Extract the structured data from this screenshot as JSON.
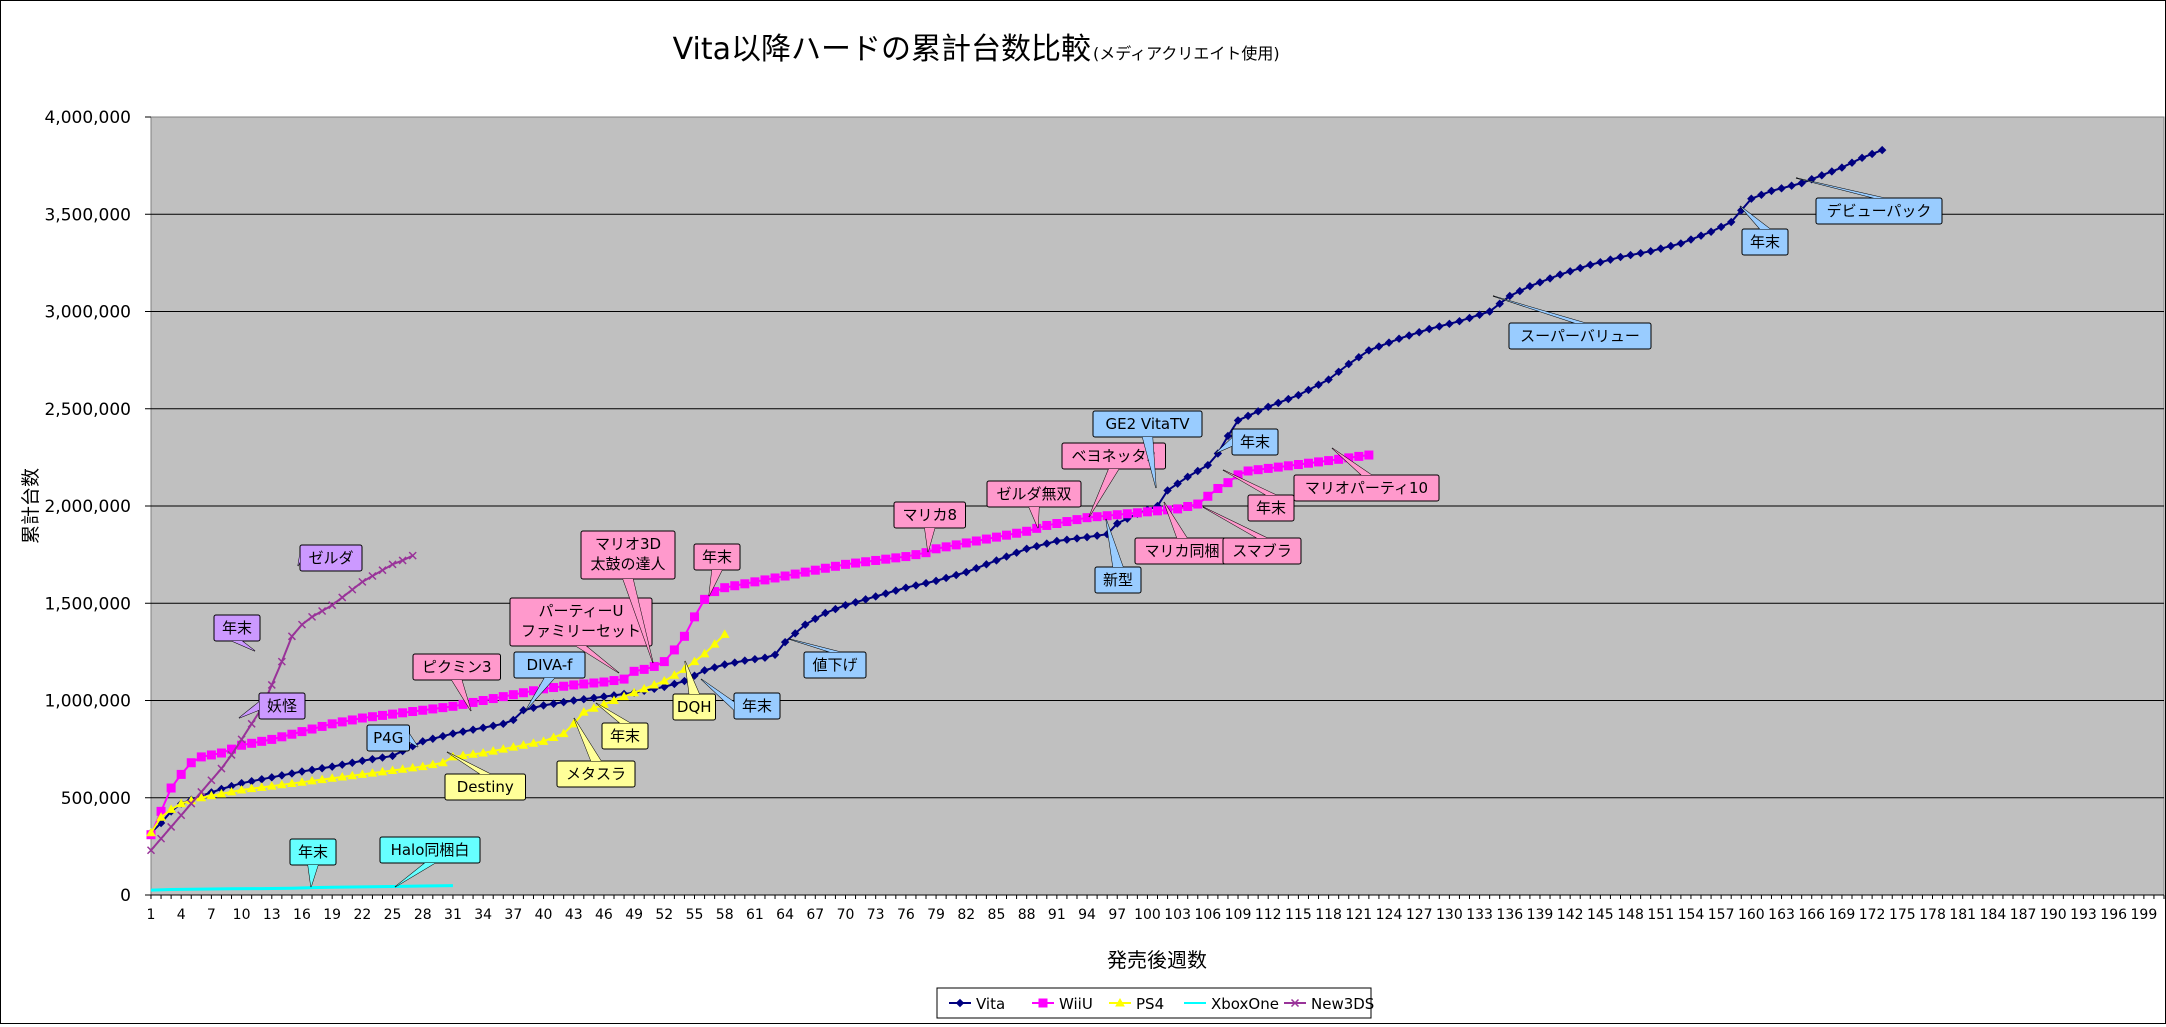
{
  "chart_data": {
    "type": "line",
    "title": "Vita以降ハードの累計台数比較",
    "subtitle": "(メディアクリエイト使用)",
    "xlabel": "発売後週数",
    "ylabel": "累計台数",
    "xlim": [
      1,
      201
    ],
    "ylim": [
      0,
      4000000
    ],
    "yticks": [
      0,
      500000,
      1000000,
      1500000,
      2000000,
      2500000,
      3000000,
      3500000,
      4000000
    ],
    "ytick_labels": [
      "0",
      "500,000",
      "1,000,000",
      "1,500,000",
      "2,000,000",
      "2,500,000",
      "3,000,000",
      "3,500,000",
      "4,000,000"
    ],
    "xtick_labels": [
      "1",
      "4",
      "7",
      "10",
      "13",
      "16",
      "19",
      "22",
      "25",
      "28",
      "31",
      "34",
      "37",
      "40",
      "43",
      "46",
      "49",
      "52",
      "55",
      "58",
      "61",
      "64",
      "67",
      "70",
      "73",
      "76",
      "79",
      "82",
      "85",
      "88",
      "91",
      "94",
      "97",
      "100",
      "103",
      "106",
      "109",
      "112",
      "115",
      "118",
      "121",
      "124",
      "127",
      "130",
      "133",
      "136",
      "139",
      "142",
      "145",
      "148",
      "151",
      "154",
      "157",
      "160",
      "163",
      "166",
      "169",
      "172",
      "175",
      "178",
      "181",
      "184",
      "187",
      "190",
      "193",
      "196",
      "199"
    ],
    "grid": true,
    "legend_position": "bottom",
    "series": [
      {
        "name": "Vita",
        "color": "#000080",
        "marker": "diamond",
        "points": [
          [
            1,
            320000
          ],
          [
            2,
            370000
          ],
          [
            3,
            430000
          ],
          [
            4,
            470000
          ],
          [
            6,
            510000
          ],
          [
            8,
            545000
          ],
          [
            10,
            575000
          ],
          [
            13,
            605000
          ],
          [
            16,
            635000
          ],
          [
            19,
            660000
          ],
          [
            22,
            690000
          ],
          [
            25,
            715000
          ],
          [
            26,
            740000
          ],
          [
            28,
            790000
          ],
          [
            31,
            830000
          ],
          [
            34,
            860000
          ],
          [
            36,
            880000
          ],
          [
            37,
            900000
          ],
          [
            38,
            950000
          ],
          [
            40,
            975000
          ],
          [
            43,
            1000000
          ],
          [
            46,
            1020000
          ],
          [
            49,
            1040000
          ],
          [
            52,
            1070000
          ],
          [
            54,
            1100000
          ],
          [
            56,
            1155000
          ],
          [
            58,
            1185000
          ],
          [
            60,
            1205000
          ],
          [
            62,
            1220000
          ],
          [
            63,
            1235000
          ],
          [
            64,
            1300000
          ],
          [
            66,
            1390000
          ],
          [
            68,
            1450000
          ],
          [
            70,
            1490000
          ],
          [
            73,
            1535000
          ],
          [
            76,
            1580000
          ],
          [
            79,
            1615000
          ],
          [
            82,
            1660000
          ],
          [
            85,
            1720000
          ],
          [
            88,
            1780000
          ],
          [
            91,
            1820000
          ],
          [
            94,
            1840000
          ],
          [
            96,
            1855000
          ],
          [
            97,
            1910000
          ],
          [
            99,
            1960000
          ],
          [
            101,
            2000000
          ],
          [
            102,
            2080000
          ],
          [
            104,
            2150000
          ],
          [
            106,
            2210000
          ],
          [
            107,
            2270000
          ],
          [
            108,
            2360000
          ],
          [
            109,
            2440000
          ],
          [
            112,
            2510000
          ],
          [
            115,
            2570000
          ],
          [
            118,
            2650000
          ],
          [
            120,
            2730000
          ],
          [
            122,
            2800000
          ],
          [
            125,
            2860000
          ],
          [
            128,
            2910000
          ],
          [
            131,
            2950000
          ],
          [
            134,
            3000000
          ],
          [
            135,
            3040000
          ],
          [
            136,
            3080000
          ],
          [
            138,
            3130000
          ],
          [
            141,
            3190000
          ],
          [
            144,
            3240000
          ],
          [
            147,
            3280000
          ],
          [
            150,
            3310000
          ],
          [
            153,
            3350000
          ],
          [
            156,
            3410000
          ],
          [
            158,
            3460000
          ],
          [
            159,
            3520000
          ],
          [
            160,
            3580000
          ],
          [
            162,
            3620000
          ],
          [
            165,
            3660000
          ],
          [
            167,
            3700000
          ],
          [
            169,
            3740000
          ],
          [
            171,
            3790000
          ],
          [
            173,
            3830000
          ]
        ]
      },
      {
        "name": "WiiU",
        "color": "#FF00FF",
        "marker": "square",
        "points": [
          [
            1,
            310000
          ],
          [
            2,
            430000
          ],
          [
            3,
            550000
          ],
          [
            4,
            620000
          ],
          [
            5,
            680000
          ],
          [
            6,
            710000
          ],
          [
            8,
            730000
          ],
          [
            9,
            750000
          ],
          [
            10,
            770000
          ],
          [
            13,
            800000
          ],
          [
            16,
            840000
          ],
          [
            19,
            880000
          ],
          [
            22,
            910000
          ],
          [
            25,
            930000
          ],
          [
            28,
            950000
          ],
          [
            31,
            970000
          ],
          [
            34,
            1000000
          ],
          [
            37,
            1030000
          ],
          [
            40,
            1060000
          ],
          [
            43,
            1080000
          ],
          [
            46,
            1095000
          ],
          [
            48,
            1110000
          ],
          [
            49,
            1150000
          ],
          [
            50,
            1160000
          ],
          [
            51,
            1175000
          ],
          [
            52,
            1200000
          ],
          [
            53,
            1260000
          ],
          [
            54,
            1330000
          ],
          [
            55,
            1430000
          ],
          [
            56,
            1520000
          ],
          [
            57,
            1560000
          ],
          [
            58,
            1580000
          ],
          [
            61,
            1610000
          ],
          [
            64,
            1640000
          ],
          [
            67,
            1670000
          ],
          [
            70,
            1700000
          ],
          [
            73,
            1720000
          ],
          [
            76,
            1740000
          ],
          [
            78,
            1760000
          ],
          [
            79,
            1780000
          ],
          [
            82,
            1810000
          ],
          [
            85,
            1840000
          ],
          [
            88,
            1870000
          ],
          [
            90,
            1900000
          ],
          [
            92,
            1920000
          ],
          [
            94,
            1940000
          ],
          [
            97,
            1955000
          ],
          [
            100,
            1970000
          ],
          [
            103,
            1985000
          ],
          [
            105,
            2010000
          ],
          [
            106,
            2050000
          ],
          [
            107,
            2090000
          ],
          [
            108,
            2120000
          ],
          [
            109,
            2160000
          ],
          [
            110,
            2180000
          ],
          [
            113,
            2200000
          ],
          [
            116,
            2220000
          ],
          [
            119,
            2240000
          ],
          [
            121,
            2255000
          ],
          [
            122,
            2262000
          ]
        ]
      },
      {
        "name": "PS4",
        "color": "#FFFF00",
        "marker": "triangle",
        "points": [
          [
            1,
            320000
          ],
          [
            2,
            400000
          ],
          [
            3,
            440000
          ],
          [
            4,
            470000
          ],
          [
            6,
            500000
          ],
          [
            8,
            520000
          ],
          [
            10,
            540000
          ],
          [
            13,
            560000
          ],
          [
            16,
            580000
          ],
          [
            19,
            600000
          ],
          [
            22,
            620000
          ],
          [
            25,
            640000
          ],
          [
            28,
            660000
          ],
          [
            30,
            680000
          ],
          [
            31,
            710000
          ],
          [
            34,
            730000
          ],
          [
            37,
            760000
          ],
          [
            40,
            790000
          ],
          [
            42,
            830000
          ],
          [
            43,
            880000
          ],
          [
            44,
            940000
          ],
          [
            46,
            980000
          ],
          [
            48,
            1020000
          ],
          [
            50,
            1060000
          ],
          [
            52,
            1100000
          ],
          [
            54,
            1160000
          ],
          [
            55,
            1200000
          ],
          [
            56,
            1240000
          ],
          [
            57,
            1290000
          ],
          [
            58,
            1340000
          ]
        ]
      },
      {
        "name": "XboxOne",
        "color": "#00FFFF",
        "marker": "none",
        "points": [
          [
            1,
            25000
          ],
          [
            3,
            28000
          ],
          [
            6,
            30000
          ],
          [
            9,
            32000
          ],
          [
            12,
            33000
          ],
          [
            15,
            35000
          ],
          [
            17,
            38000
          ],
          [
            19,
            40000
          ],
          [
            22,
            42000
          ],
          [
            25,
            44000
          ],
          [
            28,
            46000
          ],
          [
            31,
            48000
          ]
        ]
      },
      {
        "name": "New3DS",
        "color": "#993399",
        "marker": "x",
        "points": [
          [
            1,
            230000
          ],
          [
            2,
            290000
          ],
          [
            3,
            350000
          ],
          [
            4,
            410000
          ],
          [
            5,
            470000
          ],
          [
            6,
            530000
          ],
          [
            7,
            590000
          ],
          [
            8,
            650000
          ],
          [
            9,
            720000
          ],
          [
            10,
            800000
          ],
          [
            11,
            880000
          ],
          [
            12,
            960000
          ],
          [
            13,
            1080000
          ],
          [
            14,
            1200000
          ],
          [
            15,
            1330000
          ],
          [
            16,
            1390000
          ],
          [
            17,
            1430000
          ],
          [
            18,
            1460000
          ],
          [
            19,
            1490000
          ],
          [
            20,
            1530000
          ],
          [
            21,
            1570000
          ],
          [
            22,
            1610000
          ],
          [
            23,
            1640000
          ],
          [
            24,
            1670000
          ],
          [
            25,
            1700000
          ],
          [
            26,
            1720000
          ],
          [
            27,
            1745000
          ]
        ]
      }
    ],
    "annotations": [
      {
        "text": "ゼルダ",
        "lines": [
          "ゼルダ"
        ],
        "color": "#CC99FF"
      },
      {
        "text": "年末",
        "lines": [
          "年末"
        ],
        "color": "#CC99FF"
      },
      {
        "text": "妖怪",
        "lines": [
          "妖怪"
        ],
        "color": "#CC99FF"
      },
      {
        "text": "ピクミン3",
        "lines": [
          "ピクミン3"
        ],
        "color": "#FF99CC"
      },
      {
        "text": "パーティーU ファミリーセット",
        "lines": [
          "パーティーU",
          "ファミリーセット"
        ],
        "color": "#FF99CC"
      },
      {
        "text": "マリオ3D 太鼓の達人",
        "lines": [
          "マリオ3D",
          "太鼓の達人"
        ],
        "color": "#FF99CC"
      },
      {
        "text": "年末",
        "lines": [
          "年末"
        ],
        "color": "#FF99CC"
      },
      {
        "text": "マリカ8",
        "lines": [
          "マリカ8"
        ],
        "color": "#FF99CC"
      },
      {
        "text": "ゼルダ無双",
        "lines": [
          "ゼルダ無双"
        ],
        "color": "#FF99CC"
      },
      {
        "text": "ベヨネッタ2",
        "lines": [
          "ベヨネッタ2"
        ],
        "color": "#FF99CC"
      },
      {
        "text": "マリカ同梱",
        "lines": [
          "マリカ同梱"
        ],
        "color": "#FF99CC"
      },
      {
        "text": "スマブラ",
        "lines": [
          "スマブラ"
        ],
        "color": "#FF99CC"
      },
      {
        "text": "年末",
        "lines": [
          "年末"
        ],
        "color": "#FF99CC"
      },
      {
        "text": "マリオパーティ10",
        "lines": [
          "マリオパーティ10"
        ],
        "color": "#FF99CC"
      },
      {
        "text": "P4G",
        "lines": [
          "P4G"
        ],
        "color": "#99CCFF"
      },
      {
        "text": "DIVA-f",
        "lines": [
          "DIVA-f"
        ],
        "color": "#99CCFF"
      },
      {
        "text": "年末",
        "lines": [
          "年末"
        ],
        "color": "#99CCFF"
      },
      {
        "text": "値下げ",
        "lines": [
          "値下げ"
        ],
        "color": "#99CCFF"
      },
      {
        "text": "新型",
        "lines": [
          "新型"
        ],
        "color": "#99CCFF"
      },
      {
        "text": "GE2 VitaTV",
        "lines": [
          "GE2 VitaTV"
        ],
        "color": "#99CCFF"
      },
      {
        "text": "年末",
        "lines": [
          "年末"
        ],
        "color": "#99CCFF"
      },
      {
        "text": "スーパーバリュー",
        "lines": [
          "スーパーバリュー"
        ],
        "color": "#99CCFF"
      },
      {
        "text": "年末",
        "lines": [
          "年末"
        ],
        "color": "#99CCFF"
      },
      {
        "text": "デビューパック",
        "lines": [
          "デビューパック"
        ],
        "color": "#99CCFF"
      },
      {
        "text": "Destiny",
        "lines": [
          "Destiny"
        ],
        "color": "#FFFF99"
      },
      {
        "text": "メタスラ",
        "lines": [
          "メタスラ"
        ],
        "color": "#FFFF99"
      },
      {
        "text": "年末",
        "lines": [
          "年末"
        ],
        "color": "#FFFF99"
      },
      {
        "text": "DQH",
        "lines": [
          "DQH"
        ],
        "color": "#FFFF99"
      },
      {
        "text": "年末",
        "lines": [
          "年末"
        ],
        "color": "#66FFFF"
      },
      {
        "text": "Halo同梱白",
        "lines": [
          "Halo同梱白"
        ],
        "color": "#66FFFF"
      }
    ]
  }
}
